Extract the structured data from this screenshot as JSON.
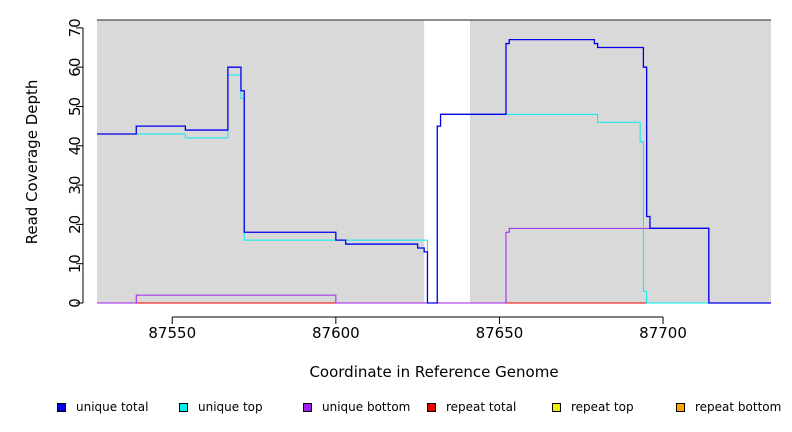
{
  "chart_data": {
    "type": "line",
    "title": "",
    "xlabel": "Coordinate in Reference Genome",
    "ylabel": "Read Coverage Depth",
    "xlim": [
      87527,
      87733
    ],
    "ylim": [
      0,
      72
    ],
    "x_ticks": [
      87550,
      87600,
      87650,
      87700
    ],
    "x_tick_labels": [
      "87550",
      "87600",
      "87650",
      "87700"
    ],
    "y_ticks": [
      0,
      10,
      20,
      30,
      40,
      50,
      60,
      70
    ],
    "y_tick_labels": [
      "0",
      "10",
      "20",
      "30",
      "40",
      "50",
      "60",
      "70"
    ],
    "grid": false,
    "shaded_regions": [
      {
        "x": [
          87527,
          87627
        ],
        "color": "#d9d9d9"
      },
      {
        "x": [
          87641,
          87733
        ],
        "color": "#d9d9d9"
      }
    ],
    "step": true,
    "series": [
      {
        "name": "unique total",
        "color": "#0000ee",
        "x": [
          87527,
          87539,
          87554,
          87567,
          87571,
          87572,
          87600,
          87603,
          87625,
          87627,
          87628,
          87631,
          87632,
          87652,
          87653,
          87679,
          87680,
          87694,
          87695,
          87696,
          87714,
          87733
        ],
        "y": [
          43,
          45,
          44,
          60,
          54,
          18,
          16,
          15,
          14,
          13,
          0,
          45,
          48,
          66,
          67,
          66,
          65,
          60,
          22,
          19,
          0,
          0
        ]
      },
      {
        "name": "unique top",
        "color": "#00eeee",
        "x": [
          87527,
          87539,
          87554,
          87567,
          87571,
          87572,
          87600,
          87628,
          87631,
          87632,
          87678,
          87680,
          87693,
          87694,
          87695,
          87696,
          87733
        ],
        "y": [
          43,
          43,
          42,
          58,
          52,
          16,
          16,
          0,
          45,
          48,
          48,
          46,
          41,
          3,
          0,
          0,
          0
        ],
        "note_values_end": true
      },
      {
        "name": "unique bottom",
        "color": "#a020f0",
        "x": [
          87527,
          87539,
          87600,
          87652,
          87653,
          87694,
          87696,
          87714,
          87733
        ],
        "y": [
          0,
          2,
          0,
          18,
          19,
          19,
          19,
          0,
          0
        ]
      },
      {
        "name": "repeat total",
        "color": "#ee0000",
        "x": [
          87527,
          87733
        ],
        "y": [
          0,
          0
        ]
      },
      {
        "name": "repeat top",
        "color": "#eeee00",
        "x": [
          87527,
          87733
        ],
        "y": [
          0,
          0
        ]
      },
      {
        "name": "repeat bottom",
        "color": "#ffa500",
        "x": [
          87527,
          87733
        ],
        "y": [
          0,
          0
        ]
      }
    ]
  },
  "legend": {
    "items": [
      {
        "label": "unique total",
        "color": "#0000ee"
      },
      {
        "label": "unique top",
        "color": "#00eeee"
      },
      {
        "label": "unique bottom",
        "color": "#a020f0"
      },
      {
        "label": "repeat total",
        "color": "#ee0000"
      },
      {
        "label": "repeat top",
        "color": "#eeee00"
      },
      {
        "label": "repeat bottom",
        "color": "#ffa500"
      }
    ]
  }
}
